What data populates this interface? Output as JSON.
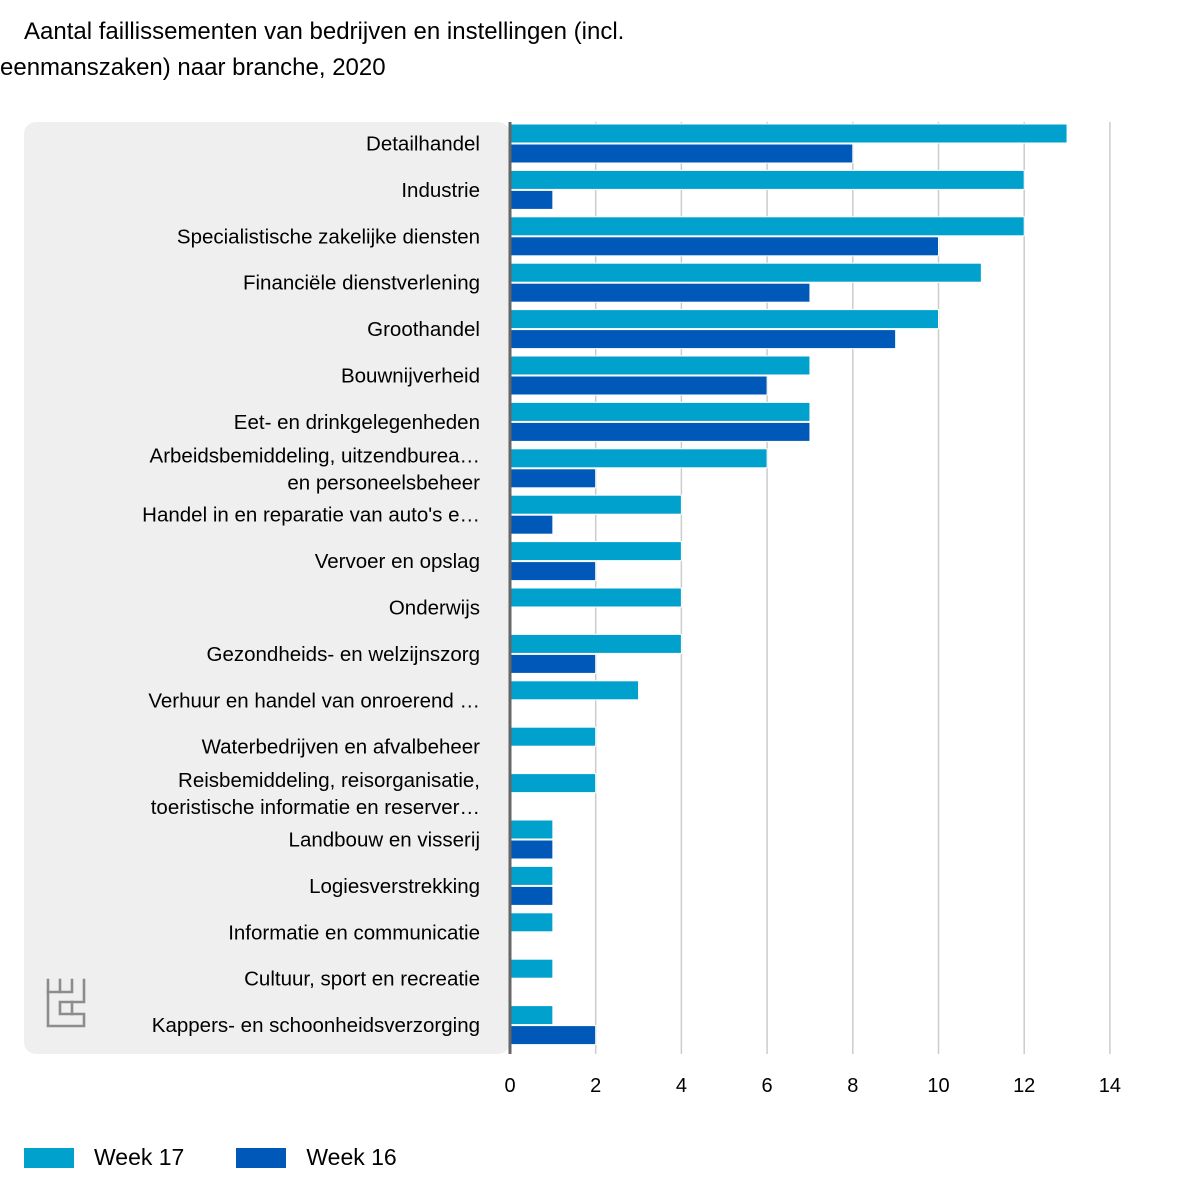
{
  "title": {
    "line1": "Aantal faillissementen van bedrijven en instellingen (incl.",
    "line2": "eenmanszaken) naar branche, 2020"
  },
  "colors": {
    "week17": "#00a1cd",
    "week16": "#0058b8",
    "panel": "#efefef",
    "grid": "#cccccc",
    "axis": "#666666"
  },
  "logo": {
    "icon": "cbs-logo-icon"
  },
  "chart_data": {
    "type": "bar",
    "orientation": "horizontal",
    "categories": [
      [
        "Detailhandel"
      ],
      [
        "Industrie"
      ],
      [
        "Specialistische zakelijke diensten"
      ],
      [
        "Financiële dienstverlening"
      ],
      [
        "Groothandel"
      ],
      [
        "Bouwnijverheid"
      ],
      [
        "Eet- en drinkgelegenheden"
      ],
      [
        "Arbeidsbemiddeling, uitzendburea…",
        "en personeelsbeheer"
      ],
      [
        "Handel in en reparatie van auto's e…"
      ],
      [
        "Vervoer en opslag"
      ],
      [
        "Onderwijs"
      ],
      [
        "Gezondheids- en welzijnszorg"
      ],
      [
        "Verhuur en handel van onroerend …"
      ],
      [
        "Waterbedrijven en afvalbeheer"
      ],
      [
        "Reisbemiddeling, reisorganisatie,",
        "toeristische informatie en reserver…"
      ],
      [
        "Landbouw en visserij"
      ],
      [
        "Logiesverstrekking"
      ],
      [
        "Informatie en communicatie"
      ],
      [
        "Cultuur, sport en recreatie"
      ],
      [
        "Kappers- en schoonheidsverzorging"
      ]
    ],
    "series": [
      {
        "name": "Week 17",
        "color": "#00a1cd",
        "values": [
          13,
          12,
          12,
          11,
          10,
          7,
          7,
          6,
          4,
          4,
          4,
          4,
          3,
          2,
          2,
          1,
          1,
          1,
          1,
          1
        ]
      },
      {
        "name": "Week 16",
        "color": "#0058b8",
        "values": [
          8,
          1,
          10,
          7,
          9,
          6,
          7,
          2,
          1,
          2,
          0,
          2,
          0,
          0,
          0,
          1,
          1,
          0,
          0,
          2
        ]
      }
    ],
    "xlim": [
      0,
      14
    ],
    "xticks": [
      0,
      2,
      4,
      6,
      8,
      10,
      12,
      14
    ],
    "grid": true,
    "legend_position": "bottom-left"
  }
}
